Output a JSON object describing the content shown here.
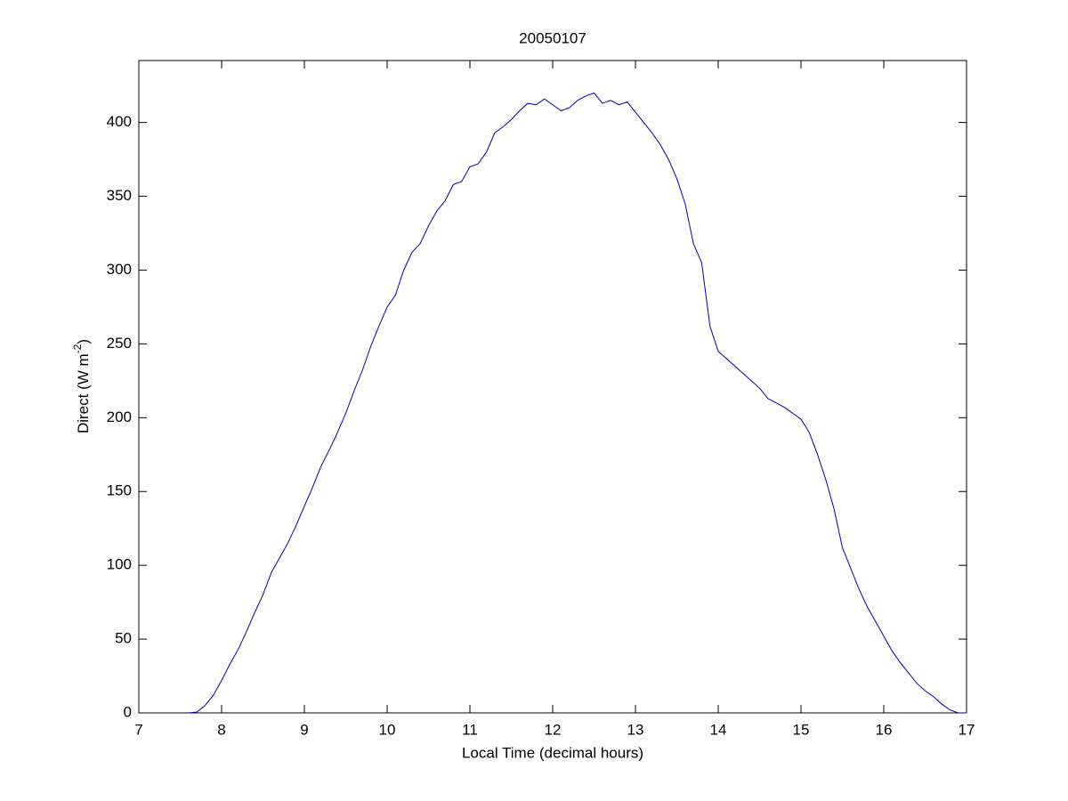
{
  "chart_data": {
    "type": "line",
    "title": "20050107",
    "xlabel": "Local Time (decimal hours)",
    "ylabel": "Direct (W m",
    "ylabel_superscript": "-2",
    "ylabel_suffix": ")",
    "xlim": [
      7,
      17
    ],
    "xticks": [
      7,
      8,
      9,
      10,
      11,
      12,
      13,
      14,
      15,
      16,
      17
    ],
    "ylim": [
      0,
      442
    ],
    "yticks": [
      0,
      50,
      100,
      150,
      200,
      250,
      300,
      350,
      400
    ],
    "x": [
      7.6,
      7.7,
      7.8,
      7.9,
      8.0,
      8.1,
      8.2,
      8.3,
      8.4,
      8.5,
      8.6,
      8.7,
      8.8,
      8.9,
      9.0,
      9.1,
      9.2,
      9.3,
      9.4,
      9.5,
      9.6,
      9.7,
      9.8,
      9.9,
      10.0,
      10.1,
      10.2,
      10.3,
      10.4,
      10.5,
      10.6,
      10.7,
      10.8,
      10.9,
      11.0,
      11.1,
      11.2,
      11.3,
      11.4,
      11.5,
      11.6,
      11.7,
      11.8,
      11.9,
      12.0,
      12.1,
      12.2,
      12.3,
      12.4,
      12.5,
      12.6,
      12.7,
      12.8,
      12.9,
      13.0,
      13.1,
      13.2,
      13.3,
      13.4,
      13.5,
      13.6,
      13.7,
      13.8,
      13.9,
      14.0,
      14.1,
      14.2,
      14.3,
      14.4,
      14.5,
      14.6,
      14.7,
      14.8,
      14.9,
      15.0,
      15.1,
      15.2,
      15.3,
      15.4,
      15.5,
      15.6,
      15.7,
      15.8,
      15.9,
      16.0,
      16.1,
      16.2,
      16.3,
      16.4,
      16.5,
      16.6,
      16.7,
      16.8,
      16.9,
      17.0
    ],
    "series": [
      {
        "color": "#0000aa",
        "values": [
          0,
          0.5,
          5,
          12,
          22,
          33,
          43,
          55,
          68,
          80,
          95,
          105,
          115,
          127,
          140,
          153,
          167,
          178,
          190,
          203,
          218,
          232,
          248,
          262,
          275,
          283,
          300,
          312,
          318,
          330,
          340,
          347,
          358,
          360,
          370,
          372,
          380,
          393,
          397,
          402,
          408,
          413,
          412,
          416,
          412,
          408,
          410,
          415,
          418,
          420,
          413,
          415,
          412,
          414,
          407,
          400,
          393,
          385,
          375,
          362,
          345,
          318,
          305,
          262,
          245,
          240,
          235,
          230,
          225,
          220,
          213,
          210,
          207,
          203,
          199,
          190,
          175,
          158,
          138,
          112,
          98,
          84,
          72,
          62,
          52,
          42,
          34,
          27,
          20,
          15,
          11,
          6,
          2,
          0,
          0
        ]
      }
    ]
  }
}
